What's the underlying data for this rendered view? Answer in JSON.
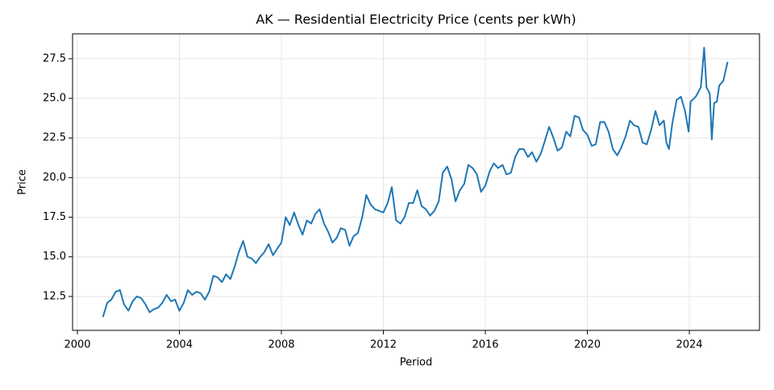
{
  "chart_data": {
    "type": "line",
    "title": "AK — Residential Electricity Price (cents per kWh)",
    "xlabel": "Period",
    "ylabel": "Price",
    "color": "#1f77b4",
    "grid": true,
    "xlim": [
      1999.81,
      2026.75
    ],
    "ylim": [
      10.36,
      29.07
    ],
    "xticks": [
      2000,
      2004,
      2008,
      2012,
      2016,
      2020,
      2024
    ],
    "yticks": [
      12.5,
      {
        "value": 15,
        "label": "15.0"
      },
      17.5,
      {
        "value": 20,
        "label": "20.0"
      },
      22.5,
      {
        "value": 25,
        "label": "25.0"
      },
      27.5
    ],
    "x": [
      2001,
      2001.17,
      2001.33,
      2001.5,
      2001.67,
      2001.83,
      2002,
      2002.17,
      2002.33,
      2002.5,
      2002.67,
      2002.83,
      2003,
      2003.17,
      2003.33,
      2003.5,
      2003.67,
      2003.83,
      2004,
      2004.17,
      2004.33,
      2004.5,
      2004.67,
      2004.83,
      2005,
      2005.17,
      2005.33,
      2005.5,
      2005.67,
      2005.83,
      2006,
      2006.17,
      2006.33,
      2006.5,
      2006.67,
      2006.83,
      2007,
      2007.17,
      2007.33,
      2007.5,
      2007.67,
      2007.83,
      2008,
      2008.17,
      2008.33,
      2008.5,
      2008.67,
      2008.83,
      2009,
      2009.17,
      2009.33,
      2009.5,
      2009.67,
      2009.83,
      2010,
      2010.17,
      2010.33,
      2010.5,
      2010.67,
      2010.83,
      2011,
      2011.17,
      2011.33,
      2011.5,
      2011.67,
      2011.83,
      2012,
      2012.17,
      2012.33,
      2012.5,
      2012.67,
      2012.83,
      2013,
      2013.17,
      2013.33,
      2013.5,
      2013.67,
      2013.83,
      2014,
      2014.17,
      2014.33,
      2014.5,
      2014.67,
      2014.83,
      2015,
      2015.17,
      2015.33,
      2015.5,
      2015.67,
      2015.83,
      2016,
      2016.17,
      2016.33,
      2016.5,
      2016.67,
      2016.83,
      2017,
      2017.17,
      2017.33,
      2017.5,
      2017.67,
      2017.83,
      2018,
      2018.17,
      2018.33,
      2018.5,
      2018.67,
      2018.83,
      2019,
      2019.17,
      2019.33,
      2019.5,
      2019.67,
      2019.83,
      2020,
      2020.17,
      2020.33,
      2020.5,
      2020.67,
      2020.83,
      2021,
      2021.17,
      2021.33,
      2021.5,
      2021.67,
      2021.83,
      2022,
      2022.17,
      2022.33,
      2022.5,
      2022.67,
      2022.83,
      2023,
      2023.1,
      2023.2,
      2023.33,
      2023.5,
      2023.67,
      2023.83,
      2023.97,
      2024.05,
      2024.25,
      2024.45,
      2024.58,
      2024.67,
      2024.8,
      2024.88,
      2024.97,
      2025.08,
      2025.17,
      2025.33,
      2025.5
    ],
    "values": [
      11.2,
      12.1,
      12.3,
      12.8,
      12.9,
      12.0,
      11.6,
      12.2,
      12.5,
      12.4,
      12.0,
      11.5,
      11.7,
      11.8,
      12.1,
      12.6,
      12.2,
      12.3,
      11.6,
      12.1,
      12.9,
      12.6,
      12.8,
      12.7,
      12.3,
      12.8,
      13.8,
      13.7,
      13.4,
      13.9,
      13.6,
      14.4,
      15.3,
      16.0,
      15.0,
      14.9,
      14.6,
      15.0,
      15.3,
      15.8,
      15.1,
      15.5,
      15.9,
      17.5,
      17.0,
      17.8,
      17.0,
      16.4,
      17.3,
      17.1,
      17.7,
      18.0,
      17.1,
      16.6,
      15.9,
      16.2,
      16.8,
      16.7,
      15.7,
      16.3,
      16.5,
      17.5,
      18.9,
      18.3,
      18.0,
      17.9,
      17.8,
      18.4,
      19.4,
      17.3,
      17.1,
      17.5,
      18.4,
      18.4,
      19.2,
      18.2,
      18.0,
      17.6,
      17.9,
      18.5,
      20.3,
      20.7,
      19.9,
      18.5,
      19.2,
      19.6,
      20.8,
      20.6,
      20.2,
      19.1,
      19.5,
      20.4,
      20.9,
      20.6,
      20.8,
      20.2,
      20.3,
      21.3,
      21.8,
      21.8,
      21.3,
      21.6,
      21.0,
      21.5,
      22.3,
      23.2,
      22.5,
      21.7,
      21.9,
      22.9,
      22.6,
      23.9,
      23.8,
      23.0,
      22.7,
      22.0,
      22.1,
      23.5,
      23.5,
      22.9,
      21.8,
      21.4,
      21.9,
      22.6,
      23.6,
      23.3,
      23.2,
      22.2,
      22.1,
      23.0,
      24.2,
      23.3,
      23.6,
      22.2,
      21.8,
      23.4,
      24.9,
      25.1,
      24.2,
      22.9,
      24.8,
      25.1,
      25.7,
      28.2,
      25.7,
      25.3,
      22.4,
      24.7,
      24.8,
      25.8,
      26.1,
      27.3
    ]
  }
}
